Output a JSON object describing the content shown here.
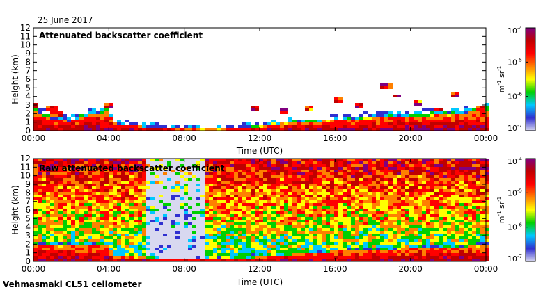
{
  "date_label": "25 June 2017",
  "footer_label": "Vehmasmaki CL51 ceilometer",
  "chart_data": [
    {
      "type": "heatmap",
      "title": "Attenuated backscatter coefficient",
      "xlabel": "Time (UTC)",
      "ylabel": "Height (km)",
      "xlim": [
        0,
        24
      ],
      "ylim": [
        0,
        12
      ],
      "x_tick_labels": [
        "00:00",
        "04:00",
        "08:00",
        "12:00",
        "16:00",
        "20:00",
        "00:00"
      ],
      "y_tick_labels": [
        "0",
        "1",
        "2",
        "3",
        "4",
        "5",
        "6",
        "7",
        "8",
        "9",
        "10",
        "11",
        "12"
      ],
      "colorbar": {
        "scale": "log",
        "range": [
          1e-07,
          0.0001
        ],
        "tick_labels": [
          "10-7",
          "10-6",
          "10-5",
          "10-4"
        ],
        "unit_label": "m-1 sr-1",
        "colors": [
          "#d8d8f0",
          "#3030d0",
          "#00c8ff",
          "#00d000",
          "#ffff00",
          "#ff8000",
          "#ff0000",
          "#c00000",
          "#800080"
        ]
      },
      "features": {
        "boundary_layer_top_km": [
          [
            0,
            2.6
          ],
          [
            1,
            1.6
          ],
          [
            2,
            1.3
          ],
          [
            3,
            2.2
          ],
          [
            4,
            2.6
          ],
          [
            4.2,
            1.0
          ],
          [
            6,
            0.5
          ],
          [
            8,
            0.2
          ],
          [
            10,
            0.2
          ],
          [
            12,
            0.6
          ],
          [
            14,
            1.2
          ],
          [
            16,
            1.4
          ],
          [
            18,
            1.8
          ],
          [
            20,
            2.0
          ],
          [
            22,
            2.2
          ],
          [
            24,
            2.8
          ]
        ],
        "cloud_base_km": [
          [
            0,
            3.0
          ],
          [
            1,
            2.5
          ],
          [
            1.2,
            1.8
          ],
          [
            4.0,
            2.8
          ],
          [
            11.8,
            2.6
          ],
          [
            13.3,
            2.2
          ],
          [
            14.6,
            2.5
          ],
          [
            16.2,
            3.6
          ],
          [
            17.2,
            2.9
          ],
          [
            18.7,
            5.2
          ],
          [
            19.3,
            4.0
          ],
          [
            20.3,
            3.1
          ],
          [
            21.5,
            2.4
          ],
          [
            22.3,
            4.1
          ],
          [
            23.7,
            2.6
          ]
        ]
      }
    },
    {
      "type": "heatmap",
      "title": "Raw attenuated backscatter coefficient",
      "xlabel": "Time (UTC)",
      "ylabel": "Height (km)",
      "xlim": [
        0,
        24
      ],
      "ylim": [
        0,
        12
      ],
      "x_tick_labels": [
        "00:00",
        "04:00",
        "08:00",
        "12:00",
        "16:00",
        "20:00",
        "00:00"
      ],
      "y_tick_labels": [
        "0",
        "1",
        "2",
        "3",
        "4",
        "5",
        "6",
        "7",
        "8",
        "9",
        "10",
        "11",
        "12"
      ],
      "colorbar": {
        "scale": "log",
        "range": [
          1e-07,
          0.0001
        ],
        "tick_labels": [
          "10-7",
          "10-6",
          "10-5",
          "10-4"
        ],
        "unit_label": "m-1 sr-1",
        "colors": [
          "#d8d8f0",
          "#3030d0",
          "#00c8ff",
          "#00d000",
          "#ffff00",
          "#ff8000",
          "#ff0000",
          "#c00000",
          "#800080"
        ]
      },
      "features": {
        "boundary_layer_top_km": [
          [
            0,
            2.4
          ],
          [
            4,
            2.2
          ],
          [
            4.2,
            0.8
          ],
          [
            8,
            0.3
          ],
          [
            12,
            0.6
          ],
          [
            16,
            1.4
          ],
          [
            20,
            1.8
          ],
          [
            24,
            2.2
          ]
        ],
        "noisy_high_background": true
      }
    }
  ]
}
